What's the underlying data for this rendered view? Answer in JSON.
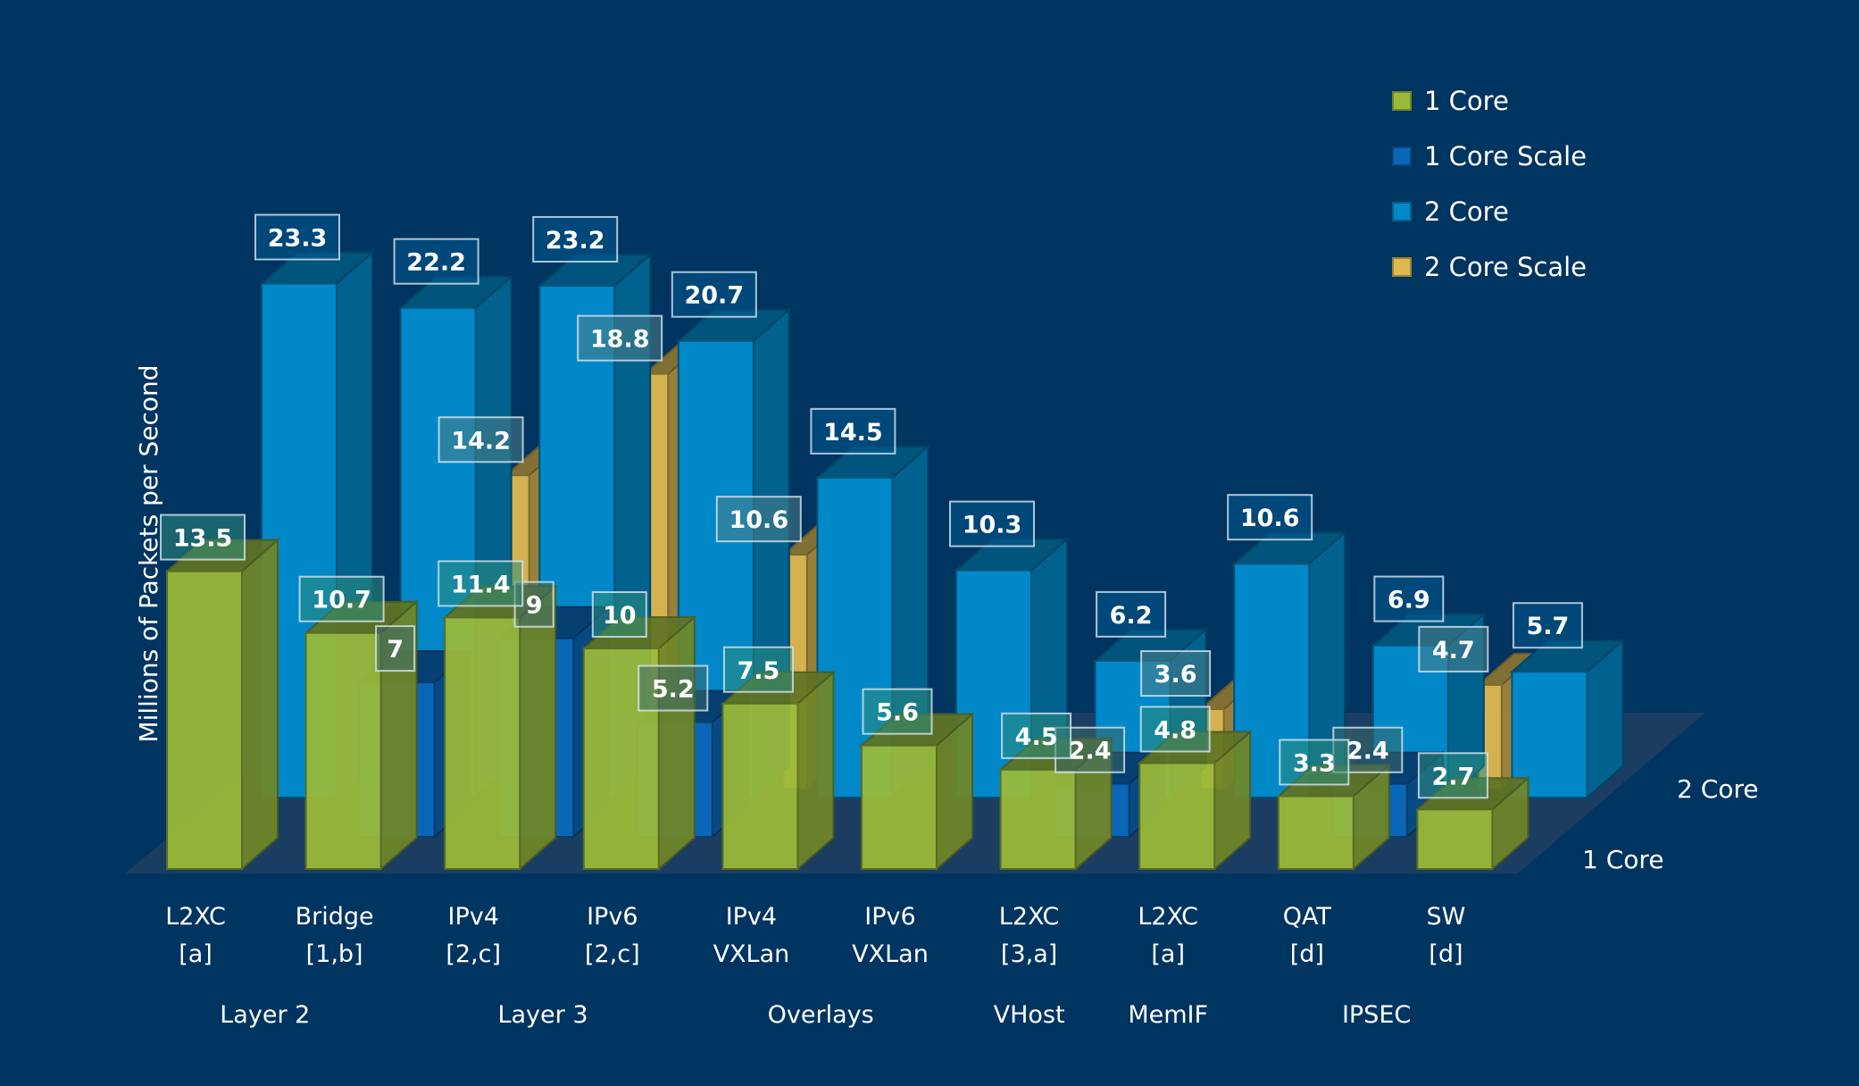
{
  "chart_data": {
    "type": "bar",
    "style": "3d-clustered-depth",
    "ylabel": "Millions of Packets per Second",
    "depth_rows": [
      "1 Core",
      "2 Core"
    ],
    "categories": [
      {
        "line1": "L2XC",
        "line2": "[a]"
      },
      {
        "line1": "Bridge",
        "line2": "[1,b]"
      },
      {
        "line1": "IPv4",
        "line2": "[2,c]"
      },
      {
        "line1": "IPv6",
        "line2": "[2,c]"
      },
      {
        "line1": "IPv4",
        "line2": "VXLan"
      },
      {
        "line1": "IPv6",
        "line2": "VXLan"
      },
      {
        "line1": "L2XC",
        "line2": "[3,a]"
      },
      {
        "line1": "L2XC",
        "line2": "[a]"
      },
      {
        "line1": "QAT",
        "line2": "[d]"
      },
      {
        "line1": "SW",
        "line2": "[d]"
      }
    ],
    "groups": [
      {
        "label": "Layer 2",
        "span": [
          0,
          1
        ]
      },
      {
        "label": "Layer 3",
        "span": [
          2,
          3
        ]
      },
      {
        "label": "Overlays",
        "span": [
          4,
          5
        ]
      },
      {
        "label": "VHost",
        "span": [
          6,
          6
        ]
      },
      {
        "label": "MemIF",
        "span": [
          7,
          7
        ]
      },
      {
        "label": "IPSEC",
        "span": [
          8,
          9
        ]
      }
    ],
    "series": [
      {
        "name": "1 Core",
        "row": "1 Core",
        "color": "#9bbb38",
        "values": [
          13.5,
          10.7,
          11.4,
          10,
          7.5,
          5.6,
          4.5,
          4.8,
          3.3,
          2.7
        ]
      },
      {
        "name": "1 Core Scale",
        "row": "1 Core",
        "color": "#0a66b6",
        "values": [
          null,
          7,
          9,
          5.2,
          null,
          null,
          2.4,
          null,
          2.4,
          null
        ]
      },
      {
        "name": "2 Core",
        "row": "2 Core",
        "color": "#0188c8",
        "values": [
          23.3,
          22.2,
          23.2,
          20.7,
          14.5,
          10.3,
          6.2,
          10.6,
          6.9,
          5.7
        ]
      },
      {
        "name": "2 Core Scale",
        "row": "2 Core",
        "color": "#dfb94f",
        "values": [
          null,
          14.2,
          18.8,
          10.6,
          null,
          null,
          3.6,
          null,
          4.7,
          null
        ]
      }
    ],
    "legend": {
      "position": "top-right",
      "items": [
        {
          "label": "1 Core",
          "color": "#9bbb38"
        },
        {
          "label": "1 Core Scale",
          "color": "#0a66b6"
        },
        {
          "label": "2 Core",
          "color": "#0188c8"
        },
        {
          "label": "2 Core Scale",
          "color": "#dfb94f"
        }
      ]
    },
    "ylim": [
      0,
      25
    ],
    "grid": false
  },
  "colors": {
    "background": "#003461",
    "floor": "#1b3d62"
  }
}
